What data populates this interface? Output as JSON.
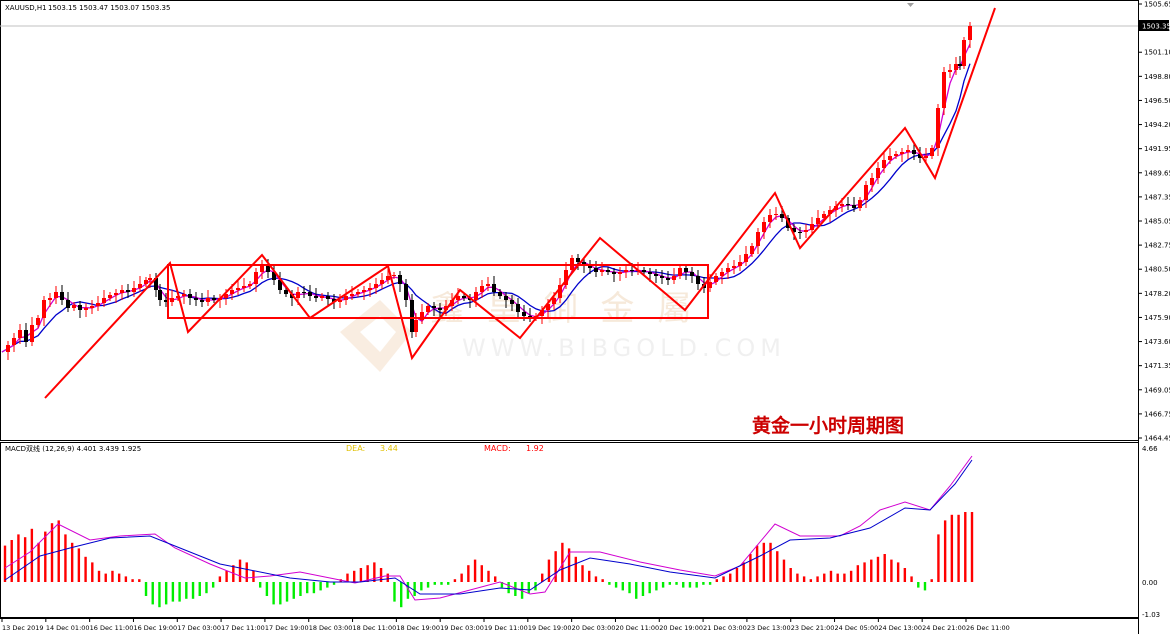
{
  "header": {
    "symbol": "XAUUSD,H1",
    "ohlc": "1503.15 1503.47 1503.07 1503.35"
  },
  "price_axis": {
    "labels": [
      "1505.65",
      "1503.35",
      "1501.10",
      "1498.80",
      "1496.50",
      "1494.20",
      "1491.95",
      "1489.65",
      "1487.35",
      "1485.05",
      "1482.75",
      "1480.50",
      "1478.20",
      "1475.90",
      "1473.60",
      "1471.35",
      "1469.05",
      "1466.75",
      "1464.45"
    ],
    "current_price": "1503.35"
  },
  "macd_panel": {
    "title": "MACD双线 (12,26,9) 4.401 3.439 1.925",
    "dea_label": "DEA:",
    "dea_value": "3.44",
    "macd_label": "MACD:",
    "macd_value": "1.92",
    "axis_labels": [
      "4.66",
      "0.00",
      "-1.03"
    ]
  },
  "time_axis": {
    "labels": [
      "13 Dec 2019",
      "14 Dec 01:00",
      "16 Dec 11:00",
      "16 Dec 19:00",
      "17 Dec 03:00",
      "17 Dec 11:00",
      "17 Dec 19:00",
      "18 Dec 03:00",
      "18 Dec 11:00",
      "18 Dec 19:00",
      "19 Dec 03:00",
      "19 Dec 11:00",
      "19 Dec 19:00",
      "20 Dec 03:00",
      "20 Dec 11:00",
      "20 Dec 19:00",
      "21 Dec 03:00",
      "23 Dec 13:00",
      "23 Dec 21:00",
      "24 Dec 05:00",
      "24 Dec 13:00",
      "24 Dec 21:00",
      "26 Dec 11:00"
    ]
  },
  "watermark": {
    "chinese": "鑫 皇 御 金 屬",
    "url": "WWW.BIBGOLD.COM"
  },
  "annotation": {
    "caption": "黄金一小时周期图"
  },
  "colors": {
    "bull": "#ff0000",
    "bear": "#000000",
    "ma_fast": "#d100d1",
    "ma_slow": "#0000cc",
    "macd_pos": "#ff0000",
    "macd_neg": "#00ee00",
    "annotation": "#ff0000"
  },
  "chart_data": [
    {
      "type": "candlestick",
      "title": "XAUUSD,H1",
      "ylim": [
        1464.45,
        1505.65
      ],
      "x": [
        "13 Dec 2019",
        "14 Dec 01:00",
        "16 Dec 11:00",
        "16 Dec 19:00",
        "17 Dec 03:00",
        "17 Dec 11:00",
        "17 Dec 19:00",
        "18 Dec 03:00",
        "18 Dec 11:00",
        "18 Dec 19:00",
        "19 Dec 03:00",
        "19 Dec 11:00",
        "19 Dec 19:00",
        "20 Dec 03:00",
        "20 Dec 11:00",
        "20 Dec 19:00",
        "21 Dec 03:00",
        "23 Dec 13:00",
        "23 Dec 21:00",
        "24 Dec 05:00",
        "24 Dec 13:00",
        "24 Dec 21:00",
        "26 Dec 11:00"
      ],
      "y_close_approx": [
        1470.5,
        1474.5,
        1476.0,
        1477.0,
        1475.0,
        1476.5,
        1477.5,
        1475.5,
        1476.5,
        1476.0,
        1475.5,
        1475.5,
        1476.5,
        1478.5,
        1477.5,
        1478.0,
        1477.5,
        1483.0,
        1483.5,
        1485.0,
        1490.0,
        1490.0,
        1503.35
      ],
      "series": [
        {
          "name": "",
          "values_ref": "fast moving average"
        },
        {
          "name": "",
          "values_ref": "slow moving average"
        }
      ]
    },
    {
      "type": "bar",
      "title": "MACD双线 (12,26,9) 4.401 3.439 1.925",
      "ylim": [
        -1.03,
        4.66
      ],
      "series": [
        {
          "name": "DEA",
          "last": 3.44
        },
        {
          "name": "MACD",
          "last": 1.92
        }
      ]
    }
  ]
}
